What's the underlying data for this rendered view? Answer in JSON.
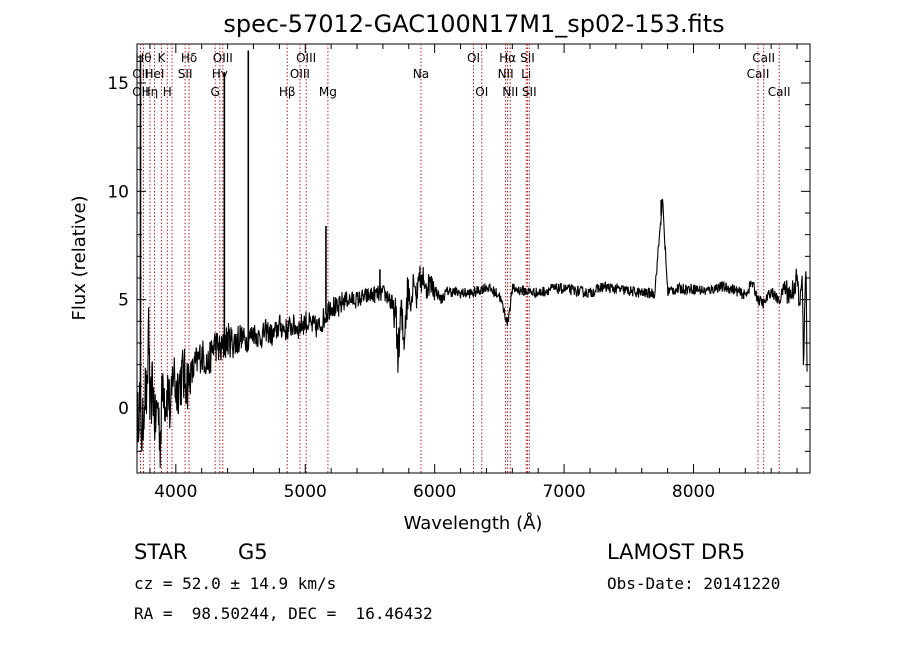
{
  "chart_data": {
    "type": "line",
    "title": "spec-57012-GAC100N17M1_sp02-153.fits",
    "xlabel": "Wavelength (Å)",
    "ylabel": "Flux (relative)",
    "xlim": [
      3700,
      8900
    ],
    "ylim": [
      -3.0,
      16.8
    ],
    "xticks": [
      4000,
      5000,
      6000,
      7000,
      8000
    ],
    "yticks": [
      0,
      5,
      10,
      15
    ],
    "grid": false,
    "series": [
      {
        "color": "#000000",
        "x": [
          3700,
          3720,
          3740,
          3760,
          3780,
          3790,
          3800,
          3820,
          3840,
          3860,
          3880,
          3900,
          3920,
          3940,
          3960,
          3980,
          4000,
          4050,
          4100,
          4150,
          4200,
          4250,
          4300,
          4350,
          4400,
          4450,
          4500,
          4550,
          4600,
          4650,
          4700,
          4750,
          4800,
          4850,
          4900,
          4950,
          5000,
          5050,
          5100,
          5150,
          5200,
          5250,
          5300,
          5400,
          5500,
          5600,
          5650,
          5700,
          5720,
          5740,
          5760,
          5780,
          5800,
          5820,
          5840,
          5860,
          5880,
          5895,
          5910,
          5930,
          5950,
          6000,
          6050,
          6100,
          6200,
          6300,
          6400,
          6500,
          6563,
          6600,
          6700,
          6800,
          6900,
          7000,
          7100,
          7200,
          7300,
          7400,
          7500,
          7600,
          7700,
          7760,
          7800,
          7900,
          8000,
          8100,
          8200,
          8300,
          8400,
          8450,
          8500,
          8542,
          8600,
          8662,
          8700,
          8750,
          8800,
          8820,
          8840,
          8850,
          8860,
          8870,
          8880
        ],
        "values": [
          -1.0,
          0.5,
          -1.5,
          1.0,
          0.2,
          4.8,
          -0.5,
          1.2,
          -0.8,
          0.3,
          -1.6,
          1.5,
          0.2,
          1.0,
          -0.6,
          2.0,
          0.8,
          1.5,
          1.2,
          2.0,
          2.5,
          2.0,
          3.0,
          2.6,
          3.2,
          3.0,
          3.3,
          3.1,
          3.5,
          3.2,
          3.6,
          3.3,
          3.8,
          3.6,
          3.8,
          3.7,
          4.0,
          3.8,
          3.7,
          4.2,
          4.8,
          4.5,
          5.0,
          5.0,
          5.2,
          5.3,
          5.1,
          4.0,
          2.4,
          4.5,
          3.0,
          4.8,
          5.5,
          4.9,
          6.2,
          5.0,
          6.5,
          5.5,
          6.3,
          5.3,
          5.8,
          5.5,
          5.0,
          5.4,
          5.3,
          5.3,
          5.6,
          5.2,
          3.9,
          5.5,
          5.4,
          5.3,
          5.5,
          5.5,
          5.4,
          5.3,
          5.6,
          5.5,
          5.4,
          5.3,
          5.3,
          9.6,
          5.4,
          5.5,
          5.5,
          5.4,
          5.6,
          5.5,
          5.2,
          5.8,
          5.0,
          4.8,
          5.4,
          4.9,
          5.6,
          5.2,
          6.0,
          4.5,
          6.5,
          1.2,
          5.5,
          6.0,
          0.0
        ]
      }
    ],
    "spikes": [
      {
        "x": 3727,
        "y": 16.3
      },
      {
        "x": 4375,
        "y": 15.5
      },
      {
        "x": 4560,
        "y": 16.5
      },
      {
        "x": 5160,
        "y": 8.4
      },
      {
        "x": 5577,
        "y": 6.4
      },
      {
        "x": 7750,
        "y": 9.6
      }
    ],
    "line_markers": [
      {
        "x": 3727,
        "labels": [
          {
            "t": "OII",
            "row": 1
          },
          {
            "t": "OII",
            "row": 2
          }
        ]
      },
      {
        "x": 3750,
        "labels": [
          {
            "t": "Hθ",
            "row": 0
          }
        ]
      },
      {
        "x": 3800,
        "labels": [
          {
            "t": "Hη",
            "row": 2
          }
        ]
      },
      {
        "x": 3835,
        "labels": [
          {
            "t": "HeI",
            "row": 1
          }
        ]
      },
      {
        "x": 3889,
        "labels": [
          {
            "t": "K",
            "row": 0
          }
        ]
      },
      {
        "x": 3934,
        "labels": [
          {
            "t": "H",
            "row": 2
          }
        ]
      },
      {
        "x": 3970,
        "labels": []
      },
      {
        "x": 4072,
        "labels": [
          {
            "t": "SII",
            "row": 1
          }
        ]
      },
      {
        "x": 4102,
        "labels": [
          {
            "t": "Hδ",
            "row": 0
          }
        ]
      },
      {
        "x": 4304,
        "labels": [
          {
            "t": "G",
            "row": 2
          }
        ]
      },
      {
        "x": 4340,
        "labels": [
          {
            "t": "Hγ",
            "row": 1
          }
        ]
      },
      {
        "x": 4363,
        "labels": [
          {
            "t": "OIII",
            "row": 0
          }
        ]
      },
      {
        "x": 4861,
        "labels": [
          {
            "t": "Hβ",
            "row": 2
          }
        ]
      },
      {
        "x": 4959,
        "labels": [
          {
            "t": "OIII",
            "row": 1
          }
        ]
      },
      {
        "x": 5007,
        "labels": [
          {
            "t": "OIII",
            "row": 0
          }
        ]
      },
      {
        "x": 5175,
        "labels": [
          {
            "t": "Mg",
            "row": 2
          }
        ]
      },
      {
        "x": 5894,
        "labels": [
          {
            "t": "Na",
            "row": 1
          }
        ]
      },
      {
        "x": 6300,
        "labels": [
          {
            "t": "OI",
            "row": 0
          }
        ]
      },
      {
        "x": 6364,
        "labels": [
          {
            "t": "OI",
            "row": 2
          }
        ]
      },
      {
        "x": 6548,
        "labels": [
          {
            "t": "NII",
            "row": 1
          }
        ]
      },
      {
        "x": 6563,
        "labels": [
          {
            "t": "Hα",
            "row": 0
          }
        ]
      },
      {
        "x": 6584,
        "labels": [
          {
            "t": "NII",
            "row": 2
          }
        ]
      },
      {
        "x": 6707,
        "labels": [
          {
            "t": "Li",
            "row": 1
          }
        ]
      },
      {
        "x": 6717,
        "labels": [
          {
            "t": "SII",
            "row": 0
          }
        ]
      },
      {
        "x": 6731,
        "labels": [
          {
            "t": "SII",
            "row": 2
          }
        ]
      },
      {
        "x": 8498,
        "labels": [
          {
            "t": "CaII",
            "row": 1
          }
        ]
      },
      {
        "x": 8542,
        "labels": [
          {
            "t": "CaII",
            "row": 0
          }
        ]
      },
      {
        "x": 8662,
        "labels": [
          {
            "t": "CaII",
            "row": 2
          }
        ]
      }
    ]
  },
  "footer": {
    "class_text": "STAR",
    "subclass_text": "G5",
    "survey_text": "LAMOST DR5",
    "cz_text": "cz = 52.0 ± 14.9 km/s",
    "obs_date_text": "Obs-Date: 20141220",
    "radec_text": "RA =  98.50244, DEC =  16.46432"
  },
  "colors": {
    "spectrum": "#000000",
    "line_marker": "#b22222",
    "axes": "#000000"
  }
}
